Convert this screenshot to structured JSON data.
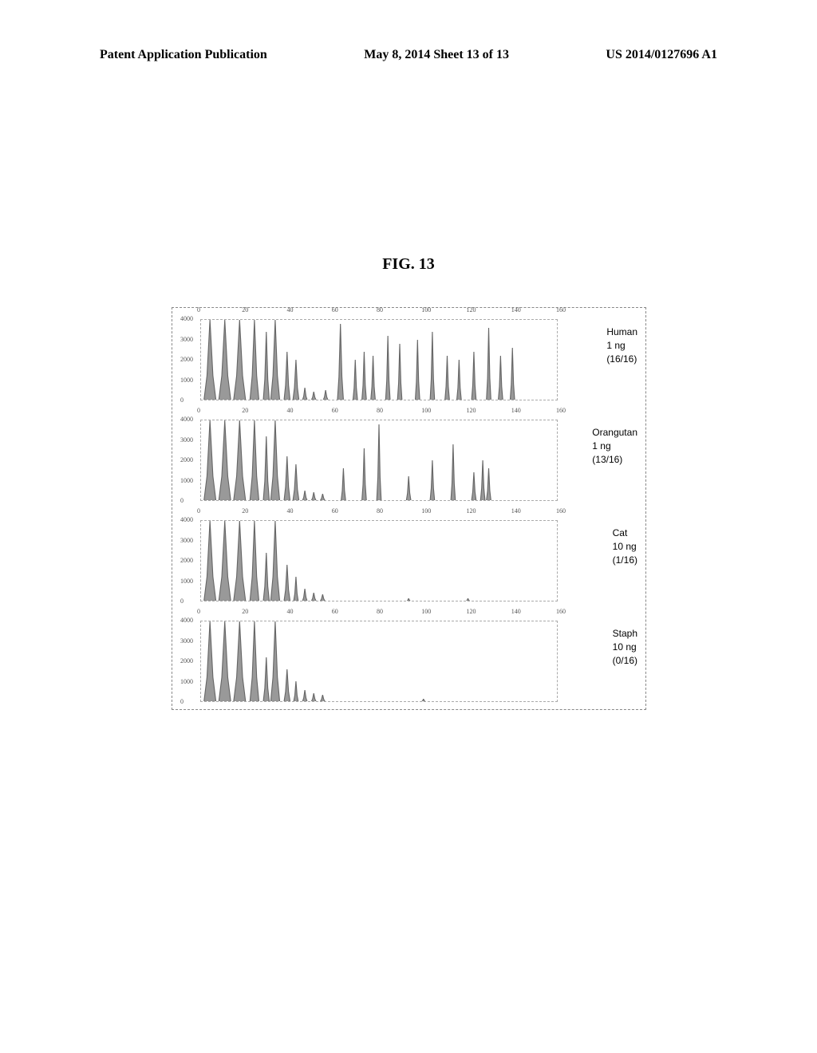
{
  "header": {
    "left": "Patent Application Publication",
    "center": "May 8, 2014  Sheet 13 of 13",
    "right": "US 2014/0127696 A1"
  },
  "figure_title": "FIG. 13",
  "chart": {
    "x_ticks": [
      0,
      20,
      40,
      60,
      80,
      100,
      120,
      140,
      160
    ],
    "y_ticks": [
      0,
      1000,
      2000,
      3000,
      4000
    ],
    "x_max": 160,
    "y_max": 4000,
    "background_color": "#ffffff",
    "axis_color": "#888888",
    "peak_color": "#999999",
    "peak_stroke": "#666666",
    "panels": [
      {
        "label_line1": "Human",
        "label_line2": "1 ng",
        "label_line3": "(16/16)",
        "peaks": [
          {
            "x": 3,
            "w": 4,
            "h": 100
          },
          {
            "x": 8,
            "w": 4,
            "h": 100
          },
          {
            "x": 13,
            "w": 4,
            "h": 100
          },
          {
            "x": 18,
            "w": 3,
            "h": 100
          },
          {
            "x": 22,
            "w": 2,
            "h": 85
          },
          {
            "x": 25,
            "w": 3,
            "h": 100
          },
          {
            "x": 29,
            "w": 2,
            "h": 60
          },
          {
            "x": 32,
            "w": 2,
            "h": 50
          },
          {
            "x": 35,
            "w": 1.5,
            "h": 15
          },
          {
            "x": 38,
            "w": 1.5,
            "h": 10
          },
          {
            "x": 42,
            "w": 1.5,
            "h": 12
          },
          {
            "x": 47,
            "w": 2,
            "h": 95
          },
          {
            "x": 52,
            "w": 1.5,
            "h": 50
          },
          {
            "x": 55,
            "w": 1.5,
            "h": 60
          },
          {
            "x": 58,
            "w": 1.5,
            "h": 55
          },
          {
            "x": 63,
            "w": 1.5,
            "h": 80
          },
          {
            "x": 67,
            "w": 1.5,
            "h": 70
          },
          {
            "x": 73,
            "w": 1.5,
            "h": 75
          },
          {
            "x": 78,
            "w": 1.5,
            "h": 85
          },
          {
            "x": 83,
            "w": 1.5,
            "h": 55
          },
          {
            "x": 87,
            "w": 1.5,
            "h": 50
          },
          {
            "x": 92,
            "w": 1.5,
            "h": 60
          },
          {
            "x": 97,
            "w": 1.5,
            "h": 90
          },
          {
            "x": 101,
            "w": 1.5,
            "h": 55
          },
          {
            "x": 105,
            "w": 1.5,
            "h": 65
          }
        ]
      },
      {
        "label_line1": "Orangutan",
        "label_line2": "1 ng",
        "label_line3": "(13/16)",
        "peaks": [
          {
            "x": 3,
            "w": 4,
            "h": 100
          },
          {
            "x": 8,
            "w": 4,
            "h": 100
          },
          {
            "x": 13,
            "w": 4,
            "h": 100
          },
          {
            "x": 18,
            "w": 3,
            "h": 100
          },
          {
            "x": 22,
            "w": 2,
            "h": 80
          },
          {
            "x": 25,
            "w": 3,
            "h": 100
          },
          {
            "x": 29,
            "w": 2,
            "h": 55
          },
          {
            "x": 32,
            "w": 2,
            "h": 45
          },
          {
            "x": 35,
            "w": 1.5,
            "h": 12
          },
          {
            "x": 38,
            "w": 1.5,
            "h": 10
          },
          {
            "x": 41,
            "w": 1.5,
            "h": 8
          },
          {
            "x": 48,
            "w": 1.5,
            "h": 40
          },
          {
            "x": 55,
            "w": 1.5,
            "h": 65
          },
          {
            "x": 60,
            "w": 1.5,
            "h": 95
          },
          {
            "x": 70,
            "w": 1.5,
            "h": 30
          },
          {
            "x": 78,
            "w": 1.5,
            "h": 50
          },
          {
            "x": 85,
            "w": 1.5,
            "h": 70
          },
          {
            "x": 92,
            "w": 1.5,
            "h": 35
          },
          {
            "x": 95,
            "w": 1.5,
            "h": 50
          },
          {
            "x": 97,
            "w": 1.5,
            "h": 40
          }
        ]
      },
      {
        "label_line1": "Cat",
        "label_line2": "10 ng",
        "label_line3": "(1/16)",
        "peaks": [
          {
            "x": 3,
            "w": 4,
            "h": 100
          },
          {
            "x": 8,
            "w": 4,
            "h": 100
          },
          {
            "x": 13,
            "w": 4,
            "h": 100
          },
          {
            "x": 18,
            "w": 3,
            "h": 100
          },
          {
            "x": 22,
            "w": 2,
            "h": 60
          },
          {
            "x": 25,
            "w": 3,
            "h": 100
          },
          {
            "x": 29,
            "w": 2,
            "h": 45
          },
          {
            "x": 32,
            "w": 1.5,
            "h": 30
          },
          {
            "x": 35,
            "w": 1.5,
            "h": 15
          },
          {
            "x": 38,
            "w": 1.5,
            "h": 10
          },
          {
            "x": 41,
            "w": 1.5,
            "h": 8
          },
          {
            "x": 70,
            "w": 1,
            "h": 3
          },
          {
            "x": 90,
            "w": 1,
            "h": 3
          }
        ]
      },
      {
        "label_line1": "Staph",
        "label_line2": "10 ng",
        "label_line3": "(0/16)",
        "peaks": [
          {
            "x": 3,
            "w": 4,
            "h": 100
          },
          {
            "x": 8,
            "w": 4,
            "h": 100
          },
          {
            "x": 13,
            "w": 4,
            "h": 100
          },
          {
            "x": 18,
            "w": 3,
            "h": 100
          },
          {
            "x": 22,
            "w": 2,
            "h": 55
          },
          {
            "x": 25,
            "w": 3,
            "h": 100
          },
          {
            "x": 29,
            "w": 2,
            "h": 40
          },
          {
            "x": 32,
            "w": 1.5,
            "h": 25
          },
          {
            "x": 35,
            "w": 1.5,
            "h": 14
          },
          {
            "x": 38,
            "w": 1.5,
            "h": 10
          },
          {
            "x": 41,
            "w": 1.5,
            "h": 8
          },
          {
            "x": 75,
            "w": 1,
            "h": 3
          }
        ]
      }
    ]
  }
}
